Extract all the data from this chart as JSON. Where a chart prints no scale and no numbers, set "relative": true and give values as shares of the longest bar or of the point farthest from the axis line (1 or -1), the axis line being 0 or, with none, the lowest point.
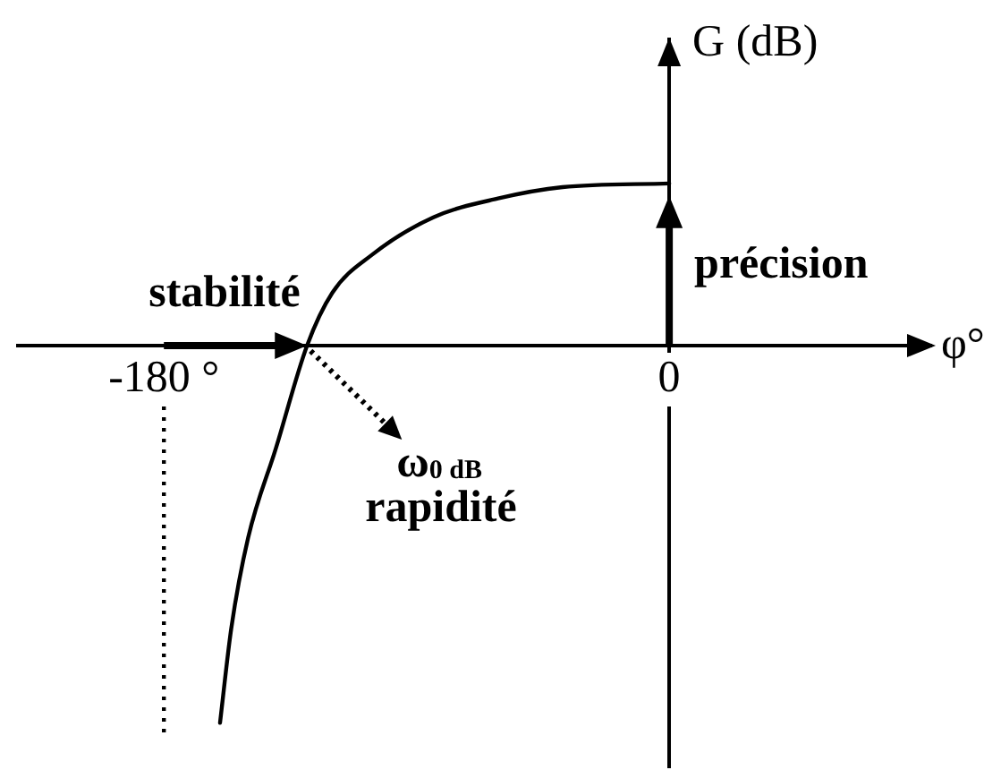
{
  "chart_data": {
    "type": "line",
    "xlabel": "φ°",
    "ylabel": "G (dB)",
    "relative": true,
    "x": [
      -160,
      -156,
      -150,
      -140,
      -129,
      -120,
      -106,
      -84,
      -61,
      -38,
      0
    ],
    "series": [
      {
        "color": "#000000",
        "values": [
          -1,
          -0.75,
          -0.51,
          -0.27,
          0,
          0.14,
          0.24,
          0.34,
          0.39,
          0.42,
          0.43
        ]
      }
    ],
    "xlim": [
      -232,
      93
    ],
    "xticks": [
      {
        "value": -180,
        "label": "-180 °"
      },
      0
    ],
    "ref_lines": [
      {
        "axis": "x",
        "value": -180,
        "color": "#000000",
        "line_style": "dotted"
      }
    ],
    "annotations": [
      "stabilité",
      "précision",
      {
        "text": "ω$_{0 dB}$",
        "x": -129,
        "y": 0
      },
      "rapidité"
    ],
    "legend": false,
    "marker": "none",
    "line_style": "solid"
  }
}
